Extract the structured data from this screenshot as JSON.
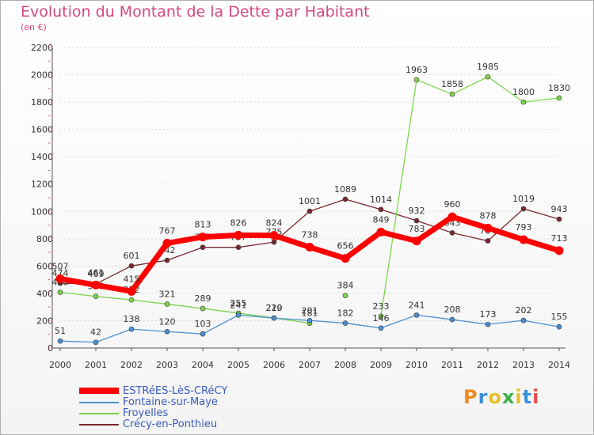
{
  "title": "Evolution du Montant de la Dette par Habitant",
  "unit": "(en €)",
  "logo": "Proxiti",
  "chart_data": {
    "type": "line",
    "x": [
      "2000",
      "2001",
      "2002",
      "2003",
      "2004",
      "2005",
      "2006",
      "2007",
      "2008",
      "2009",
      "2010",
      "2011",
      "2012",
      "2013",
      "2014"
    ],
    "ylim": [
      0,
      2200
    ],
    "yticks": [
      0,
      200,
      400,
      600,
      800,
      1000,
      1200,
      1400,
      1600,
      1800,
      2000,
      2200
    ],
    "grid": "horizontal",
    "legend_position": "bottom-left",
    "series": [
      {
        "name": "Crécy-en-Ponthieu",
        "color": "#7a2830",
        "values": [
          474,
          469,
          601,
          642,
          737,
          737,
          775,
          1001,
          1089,
          1014,
          932,
          843,
          784,
          1019,
          943
        ]
      },
      {
        "name": "Froyelles",
        "color": "#7ed64c",
        "values": [
          408,
          378,
          352,
          321,
          289,
          255,
          220,
          181,
          null,
          233,
          1963,
          1858,
          1985,
          1800,
          1830
        ],
        "extra_points": [
          {
            "x": "2008",
            "value": 384
          }
        ]
      },
      {
        "name": "Fontaine-sur-Maye",
        "color": "#4a90d0",
        "values": [
          51,
          42,
          138,
          120,
          103,
          241,
          219,
          201,
          182,
          146,
          241,
          208,
          173,
          202,
          155
        ]
      },
      {
        "name": "ESTRéES-LèS-CRéCY",
        "color": "#ff0000",
        "values": [
          507,
          461,
          415,
          767,
          813,
          826,
          824,
          738,
          656,
          849,
          783,
          960,
          878,
          793,
          713
        ]
      }
    ]
  },
  "legend": [
    {
      "label": "ESTRéES-LèS-CRéCY",
      "color": "#ff0000"
    },
    {
      "label": "Fontaine-sur-Maye",
      "color": "#4a90d0"
    },
    {
      "label": "Froyelles",
      "color": "#7ed64c"
    },
    {
      "label": "Crécy-en-Ponthieu",
      "color": "#7a2830"
    }
  ]
}
